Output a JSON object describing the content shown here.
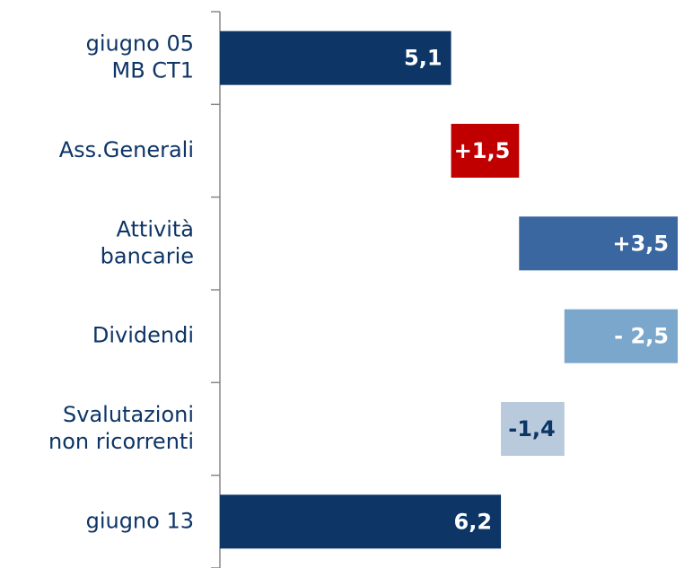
{
  "chart_data": {
    "type": "waterfall",
    "categories": [
      [
        "giugno 05",
        "MB CT1"
      ],
      [
        "Ass.Generali"
      ],
      [
        "Attività",
        "bancarie"
      ],
      [
        "Dividendi"
      ],
      [
        "Svalutazioni",
        "non ricorrenti"
      ],
      [
        "giugno 13"
      ]
    ],
    "measures": [
      "total",
      "relative",
      "relative",
      "relative",
      "relative",
      "total"
    ],
    "values": [
      5.1,
      1.5,
      3.5,
      -2.5,
      -1.4,
      6.2
    ],
    "value_labels": [
      "5,1",
      "+1,5",
      "+3,5",
      "- 2,5",
      "-1,4",
      "6,2"
    ],
    "colors": [
      "#0d3566",
      "#c00000",
      "#3a67a0",
      "#7ba7cd",
      "#b8cadb",
      "#0d3566"
    ],
    "label_colors": [
      "#ffffff",
      "#ffffff",
      "#ffffff",
      "#ffffff",
      "#0d3566",
      "#ffffff"
    ]
  }
}
